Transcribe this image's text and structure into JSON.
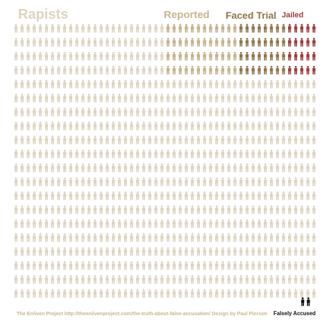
{
  "headers": {
    "rapists": "Rapists",
    "reported": "Reported",
    "faced_trial": "Faced Trial",
    "jailed": "Jailed"
  },
  "footer": {
    "credit": "The Enliven Project http://theenlivenproject.com/the-truth-about-false-accusation/ Design by Paul Pierson",
    "falsely_accused": "Falsely Accused"
  },
  "colors": {
    "rapists": "#ddd3bf",
    "reported": "#c4b08a",
    "faced_trial": "#8f7445",
    "jailed": "#9b3a3a",
    "falsely_accused": "#111111",
    "rapists_label": "#ddd3bf",
    "reported_label": "#c7b48f",
    "faced_trial_label": "#8f7445",
    "jailed_label": "#9b3a3a",
    "footer_text": "#c7b48f",
    "falsely_accused_label": "#111111"
  },
  "icon": "person-icon",
  "chart_data": {
    "type": "pictogram",
    "total_icons": 1000,
    "groups": [
      {
        "name": "Rapists",
        "count": 1000
      },
      {
        "name": "Reported",
        "count": 100
      },
      {
        "name": "Faced Trial",
        "count": 50
      },
      {
        "name": "Jailed",
        "count": 20
      },
      {
        "name": "Falsely Accused",
        "count": 2
      }
    ]
  }
}
